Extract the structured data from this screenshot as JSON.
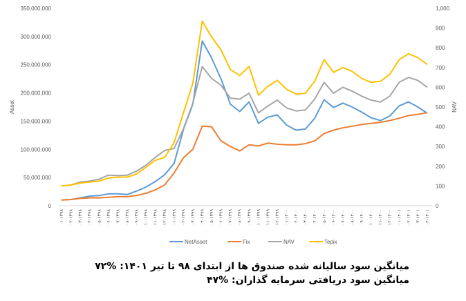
{
  "chart_data": {
    "type": "line",
    "title": "",
    "ylabel": "Asset",
    "y2label": "NAV",
    "ylim": [
      0,
      350000000
    ],
    "y2lim": [
      0,
      1000
    ],
    "yticks": [
      "0",
      "50,000,000",
      "100,000,000",
      "150,000,000",
      "200,000,000",
      "250,000,000",
      "300,000,000",
      "350,000,000"
    ],
    "y2ticks": [
      "0",
      "100",
      "200",
      "300",
      "400",
      "500",
      "600",
      "700",
      "800",
      "900",
      "1,000"
    ],
    "categories": [
      "۰۱-۱۳۹۸",
      "۰۲-۱۳۹۸",
      "۰۳-۱۳۹۸",
      "۰۴-۱۳۹۸",
      "۰۵-۱۳۹۸",
      "۰۶-۱۳۹۸",
      "۰۷-۱۳۹۸",
      "۰۸-۱۳۹۸",
      "۰۹-۱۳۹۸",
      "۱۰-۱۳۹۸",
      "۱۱-۱۳۹۸",
      "۱۲-۱۳۹۸",
      "۰۱-۱۳۹۹",
      "۰۲-۱۳۹۹",
      "۰۳-۱۳۹۹",
      "۰۴-۱۳۹۹",
      "۰۵-۱۳۹۹",
      "۰۶-۱۳۹۹",
      "۰۷-۱۳۹۹",
      "۰۸-۱۳۹۹",
      "۰۹-۱۳۹۹",
      "۱۰-۱۳۹۹",
      "۱۱-۱۳۹۹",
      "۱۲-۱۳۹۹",
      "۰۱-۱۴۰۰",
      "۰۲-۱۴۰۰",
      "۰۳-۱۴۰۰",
      "۰۴-۱۴۰۰",
      "۰۵-۱۴۰۰",
      "۰۶-۱۴۰۰",
      "۰۷-۱۴۰۰",
      "۰۸-۱۴۰۰",
      "۰۹-۱۴۰۰",
      "۱۰-۱۴۰۰",
      "۱۱-۱۴۰۰",
      "۱۲-۱۴۰۰",
      "۰۱-۱۴۰۱",
      "۰۲-۱۴۰۱",
      "۰۳-۱۴۰۱",
      "۰۴-۱۴۰۱"
    ],
    "series": [
      {
        "name": "NetAsset",
        "axis": "left",
        "color": "#5B9BD5",
        "values": [
          10000000,
          11000000,
          14000000,
          17000000,
          18000000,
          21000000,
          21000000,
          20000000,
          26000000,
          33000000,
          43000000,
          55000000,
          75000000,
          135000000,
          180000000,
          292000000,
          262000000,
          225000000,
          180000000,
          167000000,
          184000000,
          146000000,
          157000000,
          161000000,
          143000000,
          134000000,
          136000000,
          155000000,
          188000000,
          174000000,
          182000000,
          175000000,
          166000000,
          156000000,
          151000000,
          159000000,
          177000000,
          184000000,
          175000000,
          164000000
        ]
      },
      {
        "name": "Fix",
        "axis": "left",
        "color": "#ED7D31",
        "values": [
          10000000,
          11000000,
          13000000,
          14000000,
          14000000,
          15000000,
          16000000,
          16000000,
          18000000,
          22000000,
          28000000,
          37000000,
          58000000,
          85000000,
          100000000,
          141000000,
          140000000,
          115000000,
          105000000,
          97000000,
          108000000,
          106000000,
          111000000,
          109000000,
          108000000,
          108000000,
          110000000,
          115000000,
          128000000,
          134000000,
          138000000,
          141000000,
          144000000,
          146000000,
          148000000,
          151000000,
          155000000,
          160000000,
          162000000,
          165000000
        ]
      },
      {
        "name": "NAV",
        "axis": "right",
        "color": "#A5A5A5",
        "values": [
          100,
          105,
          120,
          125,
          135,
          155,
          153,
          155,
          175,
          205,
          245,
          280,
          290,
          390,
          520,
          705,
          645,
          610,
          545,
          540,
          570,
          470,
          505,
          535,
          495,
          480,
          485,
          540,
          625,
          570,
          600,
          580,
          555,
          535,
          525,
          555,
          625,
          650,
          635,
          600
        ]
      },
      {
        "name": "Tepix",
        "axis": "right",
        "color": "#FFC000",
        "values": [
          100,
          105,
          115,
          120,
          125,
          140,
          145,
          145,
          160,
          195,
          230,
          245,
          320,
          470,
          620,
          935,
          855,
          790,
          690,
          660,
          705,
          560,
          605,
          635,
          590,
          565,
          570,
          630,
          740,
          675,
          700,
          680,
          645,
          625,
          630,
          665,
          740,
          770,
          750,
          715
        ]
      }
    ],
    "grid": false,
    "legend": "bottom"
  },
  "caption": {
    "line1": "میانگین سود سالیانه شده صندوق ها از ابتدای ۹۸ تا تیر ۱۴۰۱: %۷۲",
    "line2": "میانگین سود دریافتی سرمایه گذاران: %۴۷"
  }
}
